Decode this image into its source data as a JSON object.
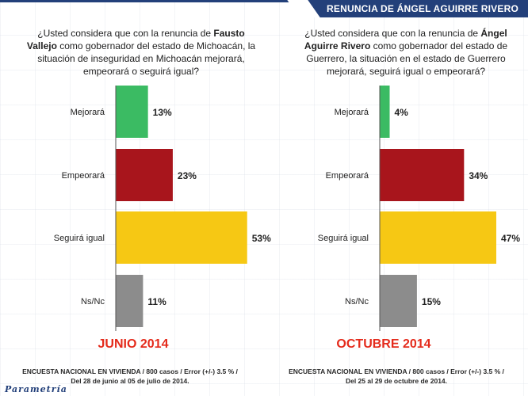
{
  "header": {
    "title": "RENUNCIA DE ÁNGEL AGUIRRE RIVERO"
  },
  "logo": {
    "text": "Parametría"
  },
  "left": {
    "question_pre": "¿Usted considera que con la renuncia de ",
    "question_bold": "Fausto Vallejo",
    "question_post": " como gobernador del estado de Michoacán, la situación de inseguridad en Michoacán mejorará, empeorará o seguirá igual?",
    "period": "JUNIO 2014",
    "footnote_line1": "ENCUESTA NACIONAL EN VIVIENDA / 800 casos / Error (+/-) 3.5 % /",
    "footnote_line2": "Del 28 de junio al 05 de julio de 2014."
  },
  "right": {
    "question_pre": "¿Usted considera que con la renuncia de ",
    "question_bold": "Ángel Aguirre Rivero",
    "question_post": " como gobernador del estado de Guerrero, la situación en el estado de Guerrero mejorará, seguirá igual o empeorará?",
    "period": "OCTUBRE 2014",
    "footnote_line1": "ENCUESTA NACIONAL EN VIVIENDA / 800 casos / Error (+/-) 3.5 % /",
    "footnote_line2": "Del 25 al 29 de octubre de 2014."
  },
  "colors": {
    "Mejorará": "#3bbb63",
    "Empeorará": "#a8151c",
    "Seguirá igual": "#f6c814",
    "Ns/Nc": "#8c8c8c",
    "accent": "#e42a1b",
    "banner": "#23407a"
  },
  "chart_data": [
    {
      "type": "bar",
      "orientation": "horizontal",
      "title": "JUNIO 2014",
      "categories": [
        "Mejorará",
        "Empeorará",
        "Seguirá igual",
        "Ns/Nc"
      ],
      "values": [
        13,
        23,
        53,
        11
      ],
      "value_labels": [
        "13%",
        "23%",
        "53%",
        "11%"
      ],
      "xlim": [
        0,
        55
      ],
      "grid": false
    },
    {
      "type": "bar",
      "orientation": "horizontal",
      "title": "OCTUBRE 2014",
      "categories": [
        "Mejorará",
        "Empeorará",
        "Seguirá igual",
        "Ns/Nc"
      ],
      "values": [
        4,
        34,
        47,
        15
      ],
      "value_labels": [
        "4%",
        "34%",
        "47%",
        "15%"
      ],
      "xlim": [
        0,
        55
      ],
      "grid": false
    }
  ]
}
